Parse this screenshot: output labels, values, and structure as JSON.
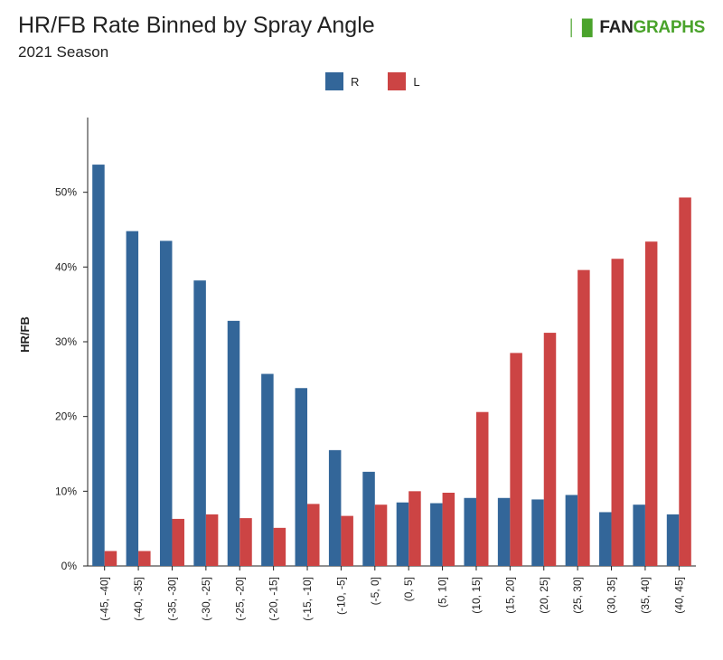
{
  "header": {
    "title": "HR/FB Rate Binned by Spray Angle",
    "subtitle": "2021 Season"
  },
  "logo": {
    "mark": "│▐▌",
    "fan": "FAN",
    "graphs": "GRAPHS"
  },
  "legend": {
    "items": [
      {
        "name": "R",
        "color": "#336699"
      },
      {
        "name": "L",
        "color": "#cc4444"
      }
    ]
  },
  "chart_data": {
    "type": "bar",
    "title": "HR/FB Rate Binned by Spray Angle",
    "subtitle": "2021 Season",
    "xlabel": "",
    "ylabel": "HR/FB",
    "ylim": [
      0,
      0.6
    ],
    "yticks": [
      0,
      0.1,
      0.2,
      0.3,
      0.4,
      0.5
    ],
    "ytick_labels": [
      "0%",
      "10%",
      "20%",
      "30%",
      "40%",
      "50%"
    ],
    "grid": false,
    "legend_position": "top-center",
    "categories": [
      "(-45, -40]",
      "(-40, -35]",
      "(-35, -30]",
      "(-30, -25]",
      "(-25, -20]",
      "(-20, -15]",
      "(-15, -10]",
      "(-10, -5]",
      "(-5, 0]",
      "(0, 5]",
      "(5, 10]",
      "(10, 15]",
      "(15, 20]",
      "(20, 25]",
      "(25, 30]",
      "(30, 35]",
      "(35, 40]",
      "(40, 45]"
    ],
    "series": [
      {
        "name": "R",
        "color": "#336699",
        "values": [
          0.537,
          0.448,
          0.435,
          0.382,
          0.328,
          0.257,
          0.238,
          0.155,
          0.126,
          0.085,
          0.084,
          0.091,
          0.091,
          0.089,
          0.095,
          0.072,
          0.082,
          0.069
        ]
      },
      {
        "name": "L",
        "color": "#cc4444",
        "values": [
          0.02,
          0.02,
          0.063,
          0.069,
          0.064,
          0.051,
          0.083,
          0.067,
          0.082,
          0.1,
          0.098,
          0.206,
          0.285,
          0.312,
          0.396,
          0.411,
          0.434,
          0.493
        ]
      }
    ]
  }
}
